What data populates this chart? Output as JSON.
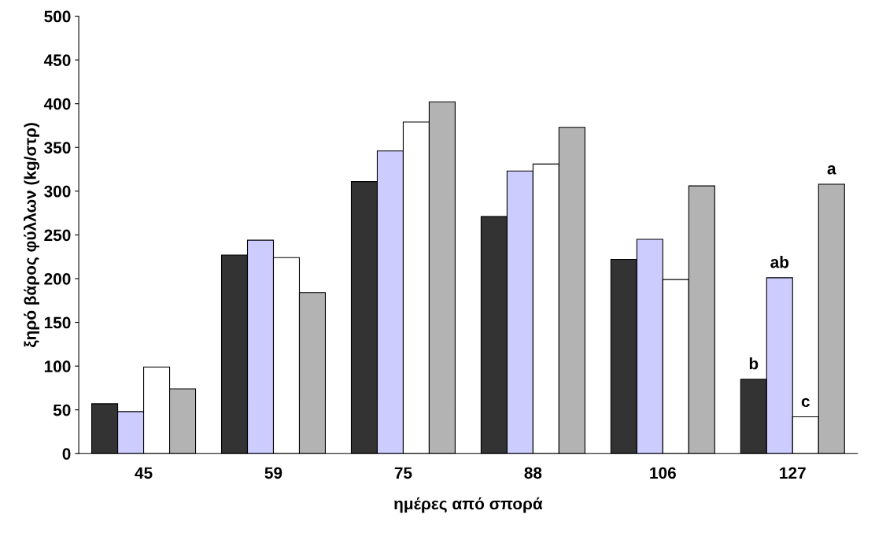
{
  "chart_data": {
    "type": "bar",
    "xlabel": "ημέρες από σπορά",
    "ylabel": "ξηρό βάρος φύλλων (kg/στρ)",
    "categories": [
      "45",
      "59",
      "75",
      "88",
      "106",
      "127"
    ],
    "series": [
      {
        "color": "#333333",
        "values": [
          57,
          227,
          311,
          271,
          222,
          85
        ],
        "value_labels": [
          null,
          null,
          null,
          null,
          null,
          "b"
        ]
      },
      {
        "color": "#ccccff",
        "values": [
          48,
          244,
          346,
          323,
          245,
          201
        ],
        "value_labels": [
          null,
          null,
          null,
          null,
          null,
          "ab"
        ]
      },
      {
        "color": "#ffffff",
        "values": [
          99,
          224,
          379,
          331,
          199,
          42
        ],
        "value_labels": [
          null,
          null,
          null,
          null,
          null,
          "c"
        ]
      },
      {
        "color": "#b3b3b3",
        "values": [
          74,
          184,
          402,
          373,
          306,
          308
        ],
        "value_labels": [
          null,
          null,
          null,
          null,
          null,
          "a"
        ]
      }
    ],
    "ylim": [
      0,
      500
    ],
    "yticks": [
      0,
      50,
      100,
      150,
      200,
      250,
      300,
      350,
      400,
      450,
      500
    ],
    "grid": false
  }
}
